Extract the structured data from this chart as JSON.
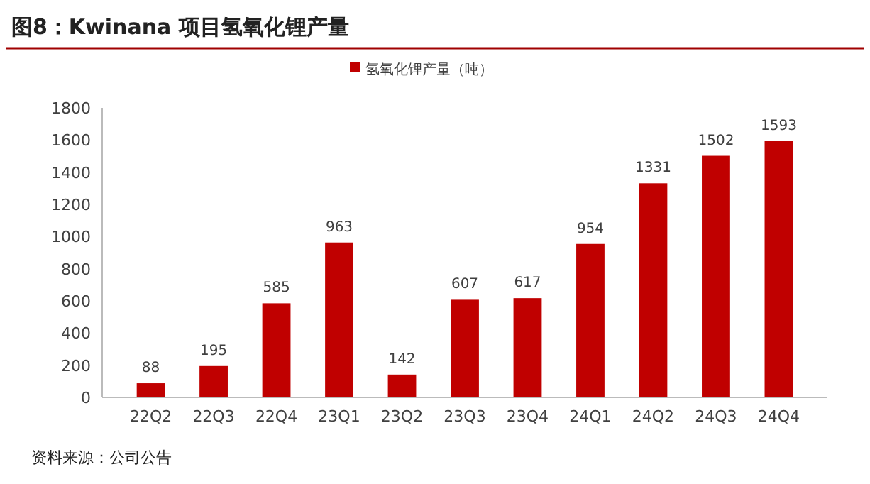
{
  "chart_data": {
    "type": "bar",
    "title": "图8：Kwinana 项目氢氧化锂产量",
    "categories": [
      "22Q2",
      "22Q3",
      "22Q4",
      "23Q1",
      "23Q2",
      "23Q3",
      "23Q4",
      "24Q1",
      "24Q2",
      "24Q3",
      "24Q4"
    ],
    "series": [
      {
        "name": "氢氧化锂产量（吨）",
        "color": "#c00000",
        "values": [
          88,
          195,
          585,
          963,
          142,
          607,
          617,
          954,
          1331,
          1502,
          1593
        ]
      }
    ],
    "ylim": [
      0,
      1800
    ],
    "yticks": [
      0,
      200,
      400,
      600,
      800,
      1000,
      1200,
      1400,
      1600,
      1800
    ],
    "data_labels": true,
    "legend": "top",
    "grid": false,
    "annotations": [
      "资料来源：公司公告"
    ]
  }
}
